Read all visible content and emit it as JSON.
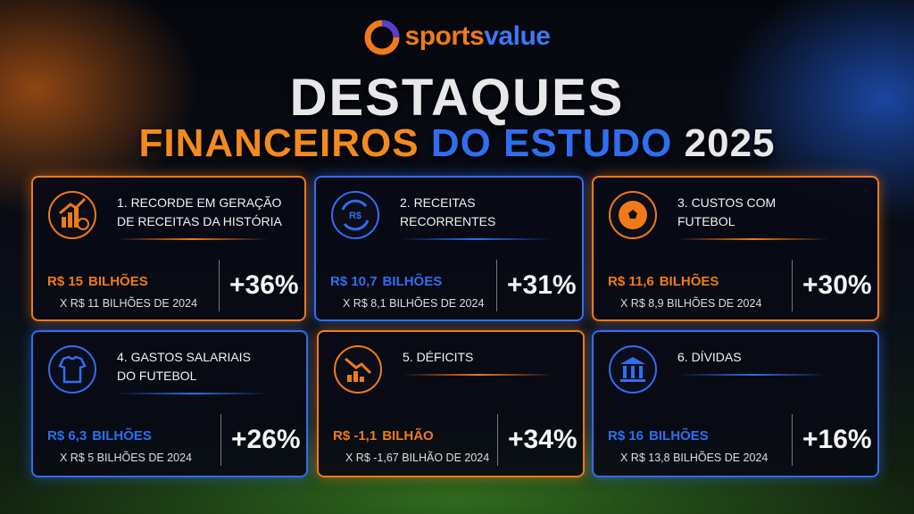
{
  "logo": {
    "part1": "sports",
    "part2": "value"
  },
  "title": {
    "line1": "DESTAQUES",
    "line2a": "FINANCEIROS",
    "line2b": "DO ESTUDO",
    "line2c": "2025"
  },
  "cards": [
    {
      "color": "#f07a1a",
      "title": [
        "1. RECORDE EM GERAÇÃO",
        "DE RECEITAS DA HISTÓRIA"
      ],
      "value": "R$ 15",
      "unit": "BILHÕES",
      "comparison": "X R$ 11 BILHÕES DE 2024",
      "change": "+36%"
    },
    {
      "color": "#2f6ef0",
      "title": [
        "2. RECEITAS",
        "RECORRENTES"
      ],
      "icon_text": "R$",
      "value": "R$ 10,7",
      "unit": "BILHÕES",
      "comparison": "X R$ 8,1 BILHÕES DE 2024",
      "change": "+31%"
    },
    {
      "color": "#f07a1a",
      "title": [
        "3. CUSTOS COM",
        "FUTEBOL"
      ],
      "value": "R$ 11,6",
      "unit": "BILHÕES",
      "comparison": "X R$ 8,9 BILHÕES DE 2024",
      "change": "+30%"
    },
    {
      "color": "#2f6ef0",
      "title": [
        "4. GASTOS SALARIAIS",
        "DO FUTEBOL"
      ],
      "value": "R$ 6,3",
      "unit": "BILHÕES",
      "comparison": "X R$ 5 BILHÕES DE 2024",
      "change": "+26%"
    },
    {
      "color": "#f07a1a",
      "title": [
        "5. DÉFICITS"
      ],
      "value": "R$ -1,1",
      "unit": "BILHÃO",
      "comparison": "X R$ -1,67 BILHÃO DE 2024",
      "change": "+34%"
    },
    {
      "color": "#2f6ef0",
      "title": [
        "6. DÍVIDAS"
      ],
      "value": "R$ 16",
      "unit": "BILHÕES",
      "comparison": "X R$ 13,8 BILHÕES DE 2024",
      "change": "+16%"
    }
  ]
}
